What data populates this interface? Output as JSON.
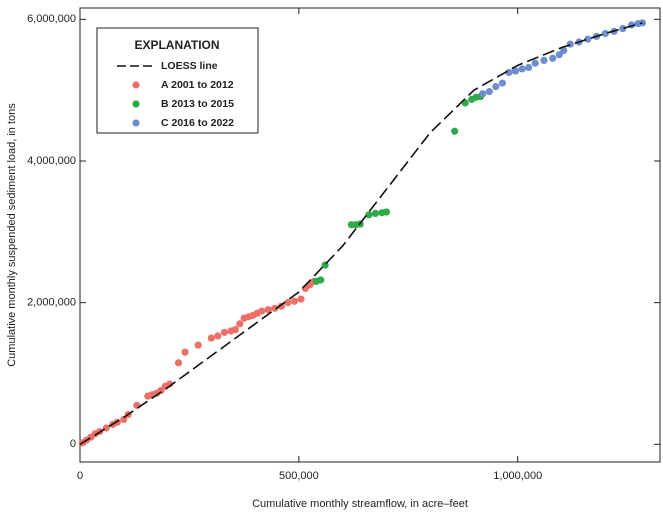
{
  "chart_data": {
    "type": "scatter",
    "x_label": "Cumulative monthly streamflow, in acre–feet",
    "y_label": "Cumulative monthly suspended sediment load, in tons",
    "legend_title": "EXPLANATION",
    "legend": "upper-left",
    "xlim": [
      0,
      1325000
    ],
    "ylim": [
      -250000,
      6160000
    ],
    "xticks": [
      0,
      {
        "value": 500000,
        "label": "500,000"
      },
      {
        "value": 1000000,
        "label": "1,000,000"
      }
    ],
    "yticks": [
      0,
      {
        "value": 2000000,
        "label": "2,000,000"
      },
      {
        "value": 4000000,
        "label": "4,000,000"
      },
      {
        "value": 6000000,
        "label": "6,000,000"
      }
    ],
    "series": [
      {
        "name": "LOESS line",
        "type": "line",
        "style": "dashed",
        "color": "#111111",
        "x": [
          0,
          100000,
          200000,
          300000,
          400000,
          500000,
          600000,
          700000,
          800000,
          900000,
          1000000,
          1100000,
          1200000,
          1285000
        ],
        "values": [
          0,
          380000,
          800000,
          1250000,
          1700000,
          2150000,
          2800000,
          3600000,
          4400000,
          5000000,
          5350000,
          5600000,
          5800000,
          5950000
        ]
      },
      {
        "name": "A 2001 to 2012",
        "type": "scatter",
        "color": "#ea7068",
        "x": [
          5000,
          15000,
          25000,
          35000,
          45000,
          60000,
          75000,
          85000,
          100000,
          110000,
          130000,
          155000,
          165000,
          175000,
          185000,
          195000,
          205000,
          225000,
          240000,
          270000,
          300000,
          315000,
          330000,
          345000,
          355000,
          365000,
          375000,
          385000,
          395000,
          405000,
          415000,
          430000,
          445000,
          460000,
          475000,
          490000,
          505000,
          515000,
          525000,
          535000
        ],
        "values": [
          20000,
          60000,
          100000,
          150000,
          180000,
          230000,
          280000,
          310000,
          350000,
          420000,
          550000,
          680000,
          700000,
          720000,
          760000,
          820000,
          850000,
          1150000,
          1300000,
          1400000,
          1500000,
          1530000,
          1580000,
          1600000,
          1620000,
          1700000,
          1780000,
          1800000,
          1820000,
          1850000,
          1880000,
          1900000,
          1920000,
          1950000,
          2000000,
          2020000,
          2050000,
          2200000,
          2250000,
          2300000
        ]
      },
      {
        "name": "B 2013 to 2015",
        "type": "scatter",
        "color": "#2eaa48",
        "x": [
          540000,
          550000,
          560000,
          620000,
          630000,
          640000,
          660000,
          675000,
          690000,
          700000,
          856000,
          880000,
          895000,
          905000,
          915000
        ],
        "values": [
          2300000,
          2320000,
          2530000,
          3100000,
          3100000,
          3110000,
          3240000,
          3260000,
          3270000,
          3280000,
          4420000,
          4820000,
          4870000,
          4900000,
          4910000
        ]
      },
      {
        "name": "C 2016 to 2022",
        "type": "scatter",
        "color": "#6e8ecd",
        "x": [
          920000,
          935000,
          950000,
          965000,
          980000,
          995000,
          1010000,
          1025000,
          1040000,
          1060000,
          1080000,
          1095000,
          1105000,
          1120000,
          1140000,
          1160000,
          1180000,
          1200000,
          1220000,
          1240000,
          1260000,
          1275000,
          1285000
        ],
        "values": [
          4950000,
          4980000,
          5050000,
          5100000,
          5250000,
          5270000,
          5300000,
          5320000,
          5380000,
          5420000,
          5450000,
          5500000,
          5560000,
          5650000,
          5680000,
          5720000,
          5760000,
          5800000,
          5830000,
          5870000,
          5920000,
          5940000,
          5950000
        ]
      }
    ]
  }
}
